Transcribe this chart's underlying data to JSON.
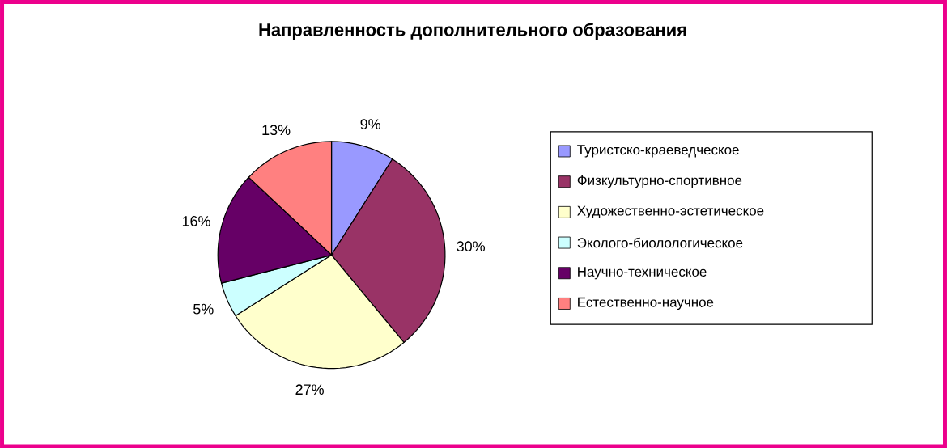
{
  "chart_data": {
    "type": "pie",
    "title": "Направленность дополнительного образования",
    "categories": [
      "Туристско-краеведческое",
      "Физкультурно-спортивное",
      "Художественно-эстетическое",
      "Эколого-биолологическое",
      "Научно-техническое",
      "Естественно-научное"
    ],
    "values": [
      9,
      30,
      27,
      5,
      16,
      13
    ],
    "value_labels": [
      "9%",
      "30%",
      "27%",
      "5%",
      "16%",
      "13%"
    ],
    "colors": [
      "#9999ff",
      "#993366",
      "#ffffcc",
      "#ccffff",
      "#660066",
      "#ff8080"
    ],
    "legend": "right"
  }
}
